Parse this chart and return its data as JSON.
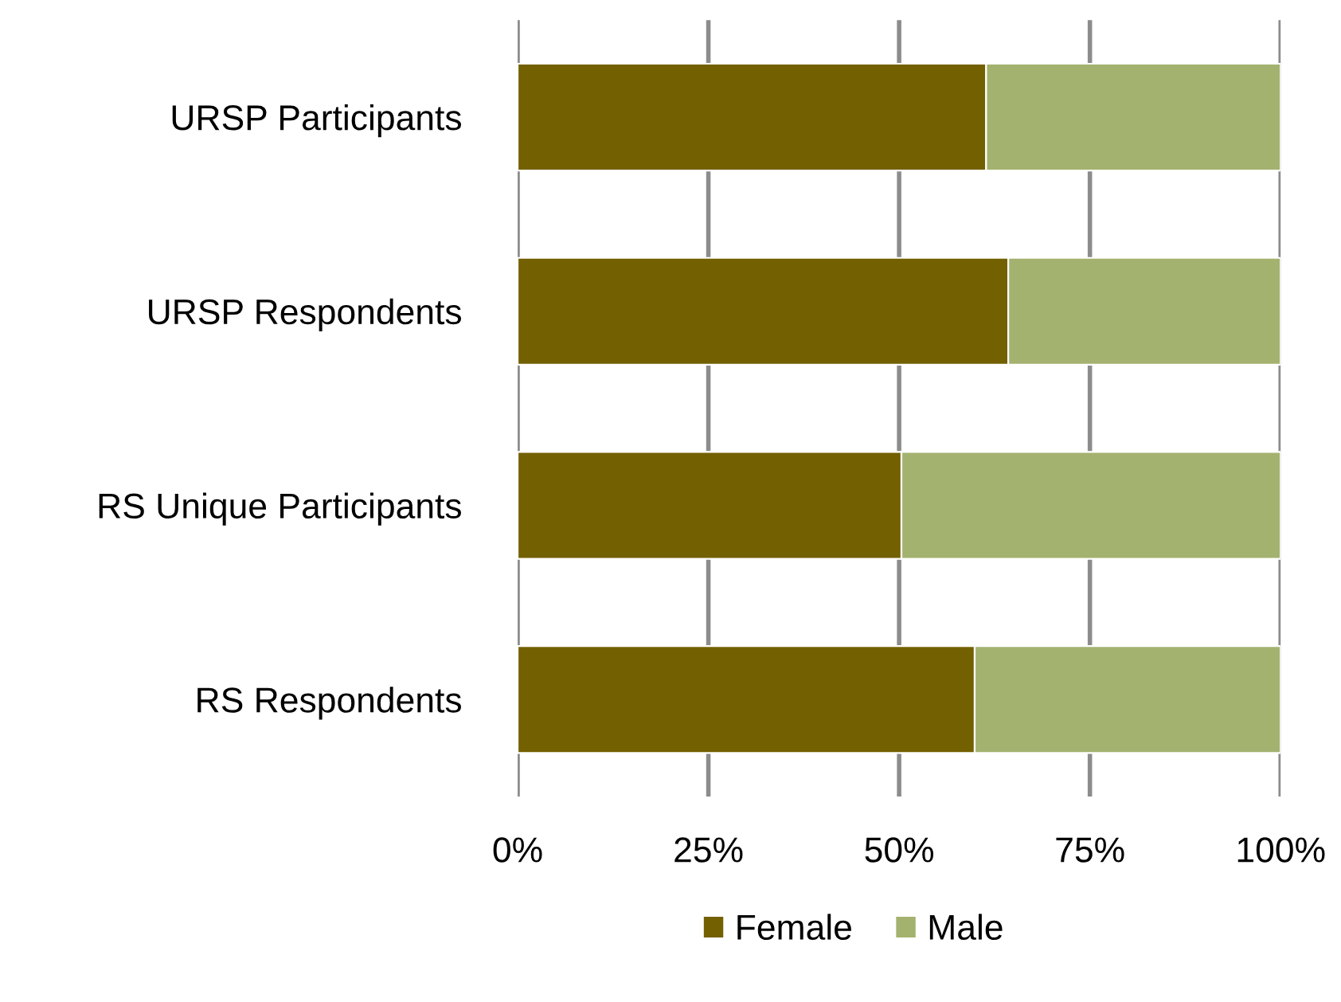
{
  "chart_data": {
    "type": "bar",
    "orientation": "horizontal",
    "stacked": true,
    "categories": [
      "URSP Participants",
      "URSP Respondents",
      "RS Unique Participants",
      "RS Respondents"
    ],
    "series": [
      {
        "name": "Female",
        "color": "#736000",
        "values": [
          61.4,
          64.3,
          50.3,
          59.9
        ]
      },
      {
        "name": "Male",
        "color": "#a3b26f",
        "values": [
          38.6,
          35.7,
          49.7,
          40.1
        ]
      }
    ],
    "xlim": [
      0,
      100
    ],
    "xticks": [
      {
        "value": 0,
        "label": "0%"
      },
      {
        "value": 25,
        "label": "25%"
      },
      {
        "value": 50,
        "label": "50%"
      },
      {
        "value": 75,
        "label": "75%"
      },
      {
        "value": 100,
        "label": "100%"
      }
    ],
    "grid": "x",
    "legend": "bottom"
  }
}
